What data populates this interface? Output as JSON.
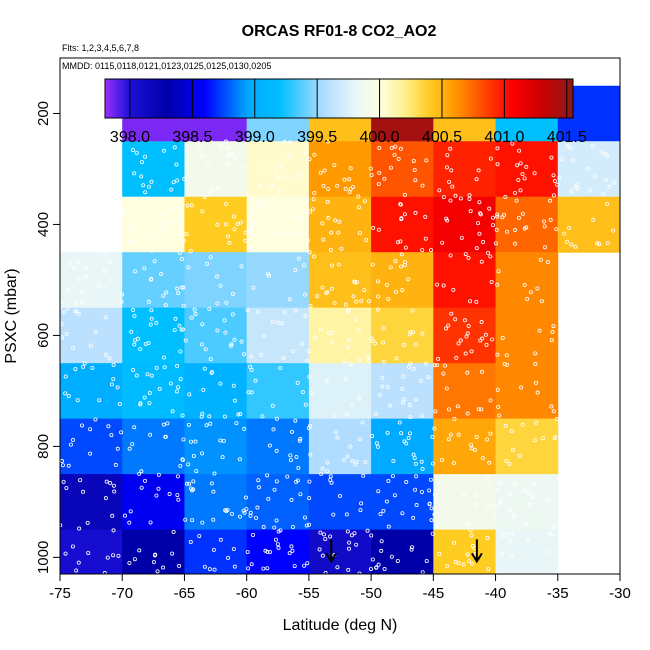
{
  "chart_data": {
    "type": "heatmap",
    "title": "ORCAS RF01-8 CO2_AO2",
    "flights_note": "Flts: 1,2,3,4,5,6,7,8",
    "mmdd_note": "MMDD: 0115,0118,0121,0123,0125,0125,0130,0205",
    "xlabel": "Latitude (deg N)",
    "ylabel": "PSXC (mbar)",
    "xlim": [
      -75,
      -30
    ],
    "ylim": [
      1030,
      100
    ],
    "x_ticks": [
      -75,
      -70,
      -65,
      -60,
      -55,
      -50,
      -45,
      -40,
      -35,
      -30
    ],
    "x_tick_labels": [
      "-75",
      "-70",
      "-65",
      "-60",
      "-55",
      "-50",
      "-45",
      "-40",
      "-35",
      "-30"
    ],
    "y_ticks": [
      200,
      400,
      600,
      800,
      1000
    ],
    "y_tick_labels": [
      "200",
      "400",
      "600",
      "800",
      "1000"
    ],
    "colorbar": {
      "min": 397.8,
      "max": 401.55,
      "ticks": [
        398.0,
        398.5,
        399.0,
        399.5,
        400.0,
        400.5,
        401.0,
        401.5
      ],
      "tick_labels": [
        "398.0",
        "398.5",
        "399.0",
        "399.5",
        "400.0",
        "400.5",
        "401.0",
        "401.5"
      ],
      "stops": [
        [
          397.8,
          "#9b30ff"
        ],
        [
          398.0,
          "#1a10d8"
        ],
        [
          398.3,
          "#0000a8"
        ],
        [
          398.6,
          "#0000ff"
        ],
        [
          398.95,
          "#00aaff"
        ],
        [
          399.2,
          "#00bfff"
        ],
        [
          399.55,
          "#b0dcff"
        ],
        [
          399.8,
          "#e8f6f8"
        ],
        [
          400.0,
          "#ffffe0"
        ],
        [
          400.2,
          "#fff090"
        ],
        [
          400.4,
          "#ffcc22"
        ],
        [
          400.6,
          "#ff9900"
        ],
        [
          400.8,
          "#ff5500"
        ],
        [
          401.05,
          "#ff0000"
        ],
        [
          401.3,
          "#cc0000"
        ],
        [
          401.55,
          "#8b1a1a"
        ]
      ]
    },
    "lat_bins": [
      -75,
      -70,
      -65,
      -60,
      -55,
      -50,
      -45,
      -40,
      -35,
      -30
    ],
    "pressure_bins": [
      100,
      150,
      250,
      350,
      450,
      550,
      650,
      750,
      850,
      950,
      1030
    ],
    "cell_values": [
      [
        null,
        null,
        null,
        null,
        null,
        null,
        null,
        null,
        null
      ],
      [
        null,
        397.85,
        397.85,
        399.45,
        400.45,
        401.45,
        400.45,
        399.2,
        398.7
      ],
      [
        null,
        399.2,
        399.9,
        400.05,
        400.6,
        400.8,
        400.95,
        401.0,
        399.7
      ],
      [
        null,
        400.0,
        400.4,
        400.0,
        400.5,
        401.0,
        401.1,
        400.75,
        400.45
      ],
      [
        399.8,
        399.4,
        399.45,
        399.5,
        400.45,
        400.5,
        401.0,
        400.65,
        null
      ],
      [
        399.6,
        399.2,
        399.35,
        399.65,
        400.15,
        400.35,
        400.9,
        400.65,
        null
      ],
      [
        399.0,
        399.15,
        399.05,
        399.3,
        399.75,
        399.6,
        400.7,
        400.65,
        null
      ],
      [
        398.75,
        398.85,
        398.9,
        398.85,
        399.55,
        398.95,
        400.55,
        400.35,
        null
      ],
      [
        398.2,
        398.55,
        398.85,
        398.8,
        398.75,
        398.75,
        399.9,
        399.85,
        null
      ],
      [
        398.05,
        398.3,
        398.7,
        398.6,
        398.1,
        398.3,
        400.4,
        399.8,
        null
      ]
    ],
    "arrows": [
      {
        "lat": -53.2,
        "pressure": 1000
      },
      {
        "lat": -41.5,
        "pressure": 1000
      }
    ],
    "marker_color": "#ffffff"
  }
}
